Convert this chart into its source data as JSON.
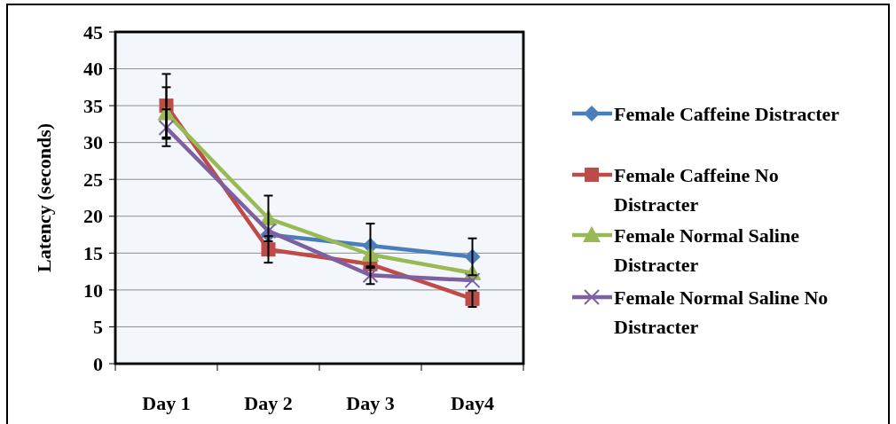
{
  "chart_data": {
    "type": "line",
    "ylabel": "Latency (seconds)",
    "categories": [
      "Day 1",
      "Day 2",
      "Day 3",
      "Day4"
    ],
    "ylim": [
      0,
      45
    ],
    "yticks": [
      0,
      5,
      10,
      15,
      20,
      25,
      30,
      35,
      40,
      45
    ],
    "grid": "y",
    "legend": "right",
    "line_style": "solid",
    "series": [
      {
        "name": "Female Caffeine Distracter",
        "color": "#4a7ebb",
        "marker": "diamond",
        "values": [
          null,
          17.5,
          16,
          14.5
        ],
        "errors": [
          null,
          null,
          3,
          2.5
        ]
      },
      {
        "name": "Female Caffeine No Distracter",
        "color": "#be4b48",
        "marker": "square",
        "values": [
          35,
          15.5,
          13.5,
          8.8
        ],
        "errors": [
          4.3,
          1.8,
          null,
          1.1
        ]
      },
      {
        "name": "Female Normal Saline Distracter",
        "color": "#98b954",
        "marker": "triangle",
        "values": [
          34,
          19.7,
          14.8,
          12.3
        ],
        "errors": [
          3.5,
          3.1,
          null,
          null
        ]
      },
      {
        "name": "Female Normal Saline No Distracter",
        "color": "#7d60a0",
        "marker": "cross",
        "values": [
          32,
          18,
          12,
          11.3
        ],
        "errors": [
          2.5,
          null,
          1.2,
          null
        ]
      }
    ]
  }
}
